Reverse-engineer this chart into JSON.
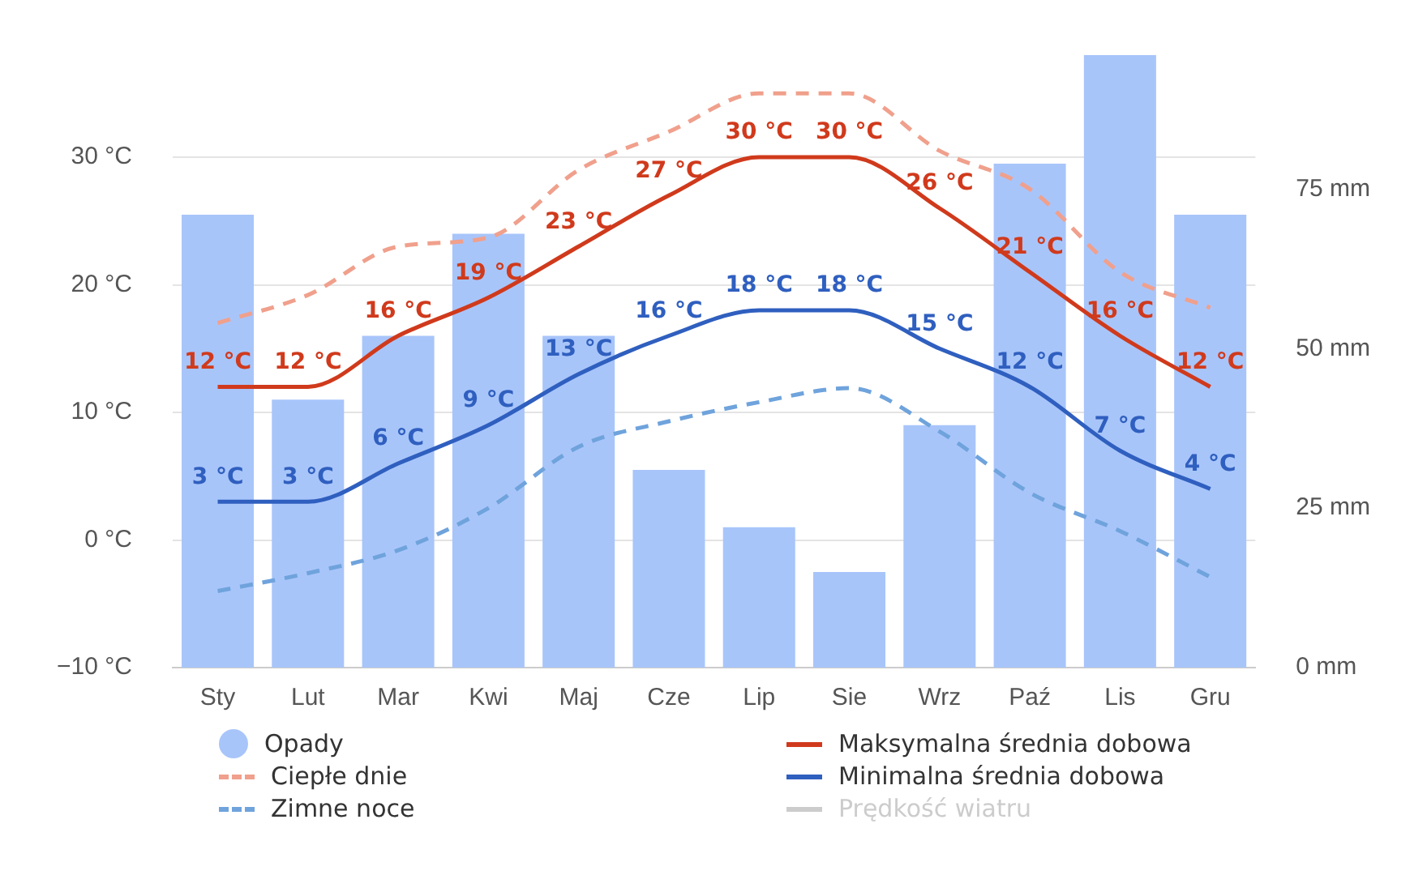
{
  "chart_data": {
    "type": "bar",
    "categories": [
      "Sty",
      "Lut",
      "Mar",
      "Kwi",
      "Maj",
      "Cze",
      "Lip",
      "Sie",
      "Wrz",
      "Paź",
      "Lis",
      "Gru"
    ],
    "series": [
      {
        "name": "Opady",
        "axis": "y2",
        "color": "#a8c5fa",
        "values": [
          71,
          42,
          52,
          68,
          52,
          31,
          22,
          15,
          38,
          79,
          96,
          71
        ]
      },
      {
        "name": "Ciepłe dnie",
        "type": "line",
        "line_style": "dashed",
        "color": "#f0a08c",
        "values": [
          17,
          19.2,
          23,
          23.7,
          29,
          32,
          35,
          35,
          30.5,
          27.5,
          21,
          18.2
        ]
      },
      {
        "name": "Zimne noce",
        "type": "line",
        "line_style": "dashed",
        "color": "#6fa3dc",
        "values": [
          -4,
          -2.6,
          -0.8,
          2.5,
          7.3,
          9.3,
          10.8,
          11.9,
          8.5,
          3.7,
          0.7,
          -2.9
        ]
      },
      {
        "name": "Maksymalna średnia dobowa",
        "type": "line",
        "line_style": "solid",
        "color": "#d03a1c",
        "values": [
          12,
          12,
          16,
          19,
          23,
          27,
          30,
          30,
          26,
          21,
          16,
          12
        ],
        "value_labels": [
          "12 °C",
          "12 °C",
          "16 °C",
          "19 °C",
          "23 °C",
          "27 °C",
          "30 °C",
          "30 °C",
          "26 °C",
          "21 °C",
          "16 °C",
          "12 °C"
        ]
      },
      {
        "name": "Minimalna średnia dobowa",
        "type": "line",
        "line_style": "solid",
        "color": "#2f5fbf",
        "values": [
          3,
          3,
          6,
          9,
          13,
          16,
          18,
          18,
          15,
          12,
          7,
          4
        ],
        "value_labels": [
          "3 °C",
          "3 °C",
          "6 °C",
          "9 °C",
          "13 °C",
          "16 °C",
          "18 °C",
          "18 °C",
          "15 °C",
          "12 °C",
          "7 °C",
          "4 °C"
        ]
      },
      {
        "name": "Prędkość wiatru",
        "type": "line",
        "line_style": "solid",
        "color": "#cccccc",
        "values": [
          null,
          null,
          null,
          null,
          null,
          null,
          null,
          null,
          null,
          null,
          null,
          null
        ]
      }
    ],
    "ylim": [
      -10,
      38
    ],
    "yticks": [
      {
        "value": -10,
        "label": "−10 °C"
      },
      {
        "value": 0,
        "label": "0 °C"
      },
      {
        "value": 10,
        "label": "10 °C"
      },
      {
        "value": 20,
        "label": "20 °C"
      },
      {
        "value": 30,
        "label": "30 °C"
      }
    ],
    "y2lim": [
      0,
      96
    ],
    "y2ticks": [
      {
        "value": 0,
        "label": "0 mm"
      },
      {
        "value": 25,
        "label": "25 mm"
      },
      {
        "value": 50,
        "label": "50 mm"
      },
      {
        "value": 75,
        "label": "75 mm"
      }
    ],
    "grid": "y",
    "marker": "none",
    "legend": "bottom"
  }
}
